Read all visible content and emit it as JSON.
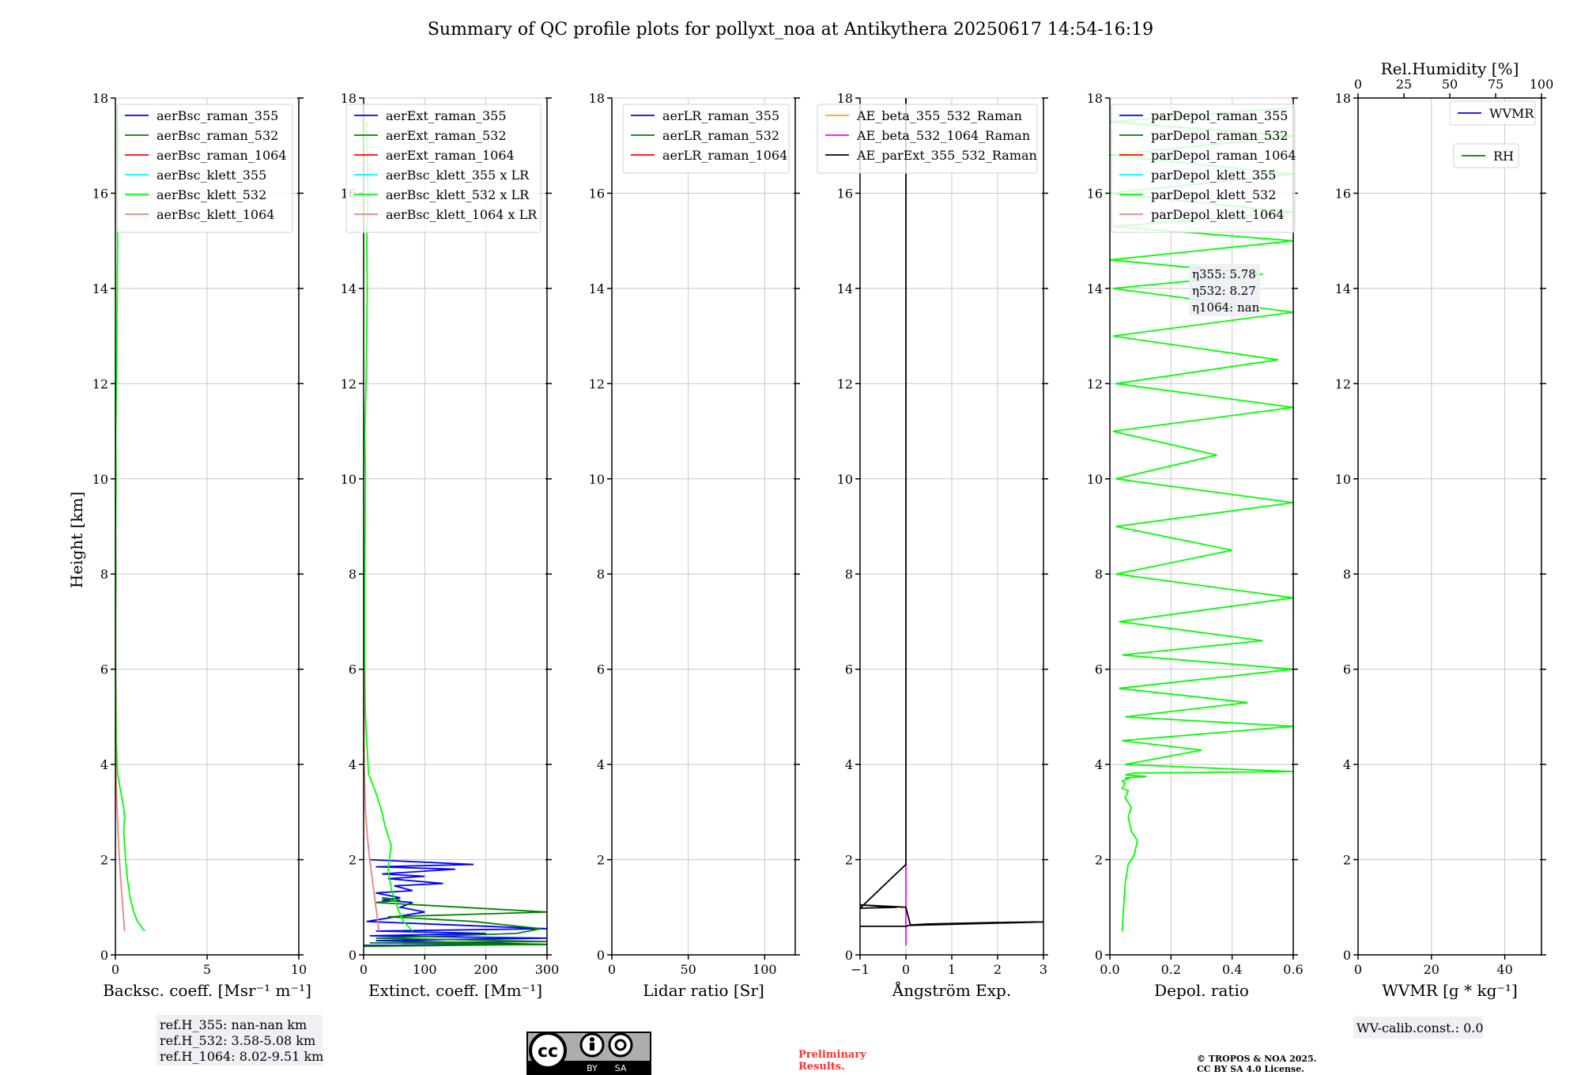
{
  "figure": {
    "title": "Summary of QC profile plots for pollyxt_noa at Antikythera 20250617 14:54-16:19",
    "ylabel": "Height [km]",
    "ref_heights": [
      "ref.H_355: nan-nan km",
      "ref.H_532: 3.58-5.08 km",
      "ref.H_1064: 8.02-9.51 km"
    ],
    "wv_calib": "WV-calib.const.: 0.0",
    "preliminary": [
      "Preliminary",
      "Results."
    ],
    "copyright": [
      "© TROPOS & NOA 2025.",
      "CC BY SA 4.0 License."
    ],
    "license_badge": {
      "by": "BY",
      "sa": "SA"
    }
  },
  "chart_data": [
    {
      "type": "line",
      "xlabel": "Backsc. coeff. [Msr⁻¹ m⁻¹]",
      "xlim": [
        0,
        10
      ],
      "xticks": [
        0,
        5,
        10
      ],
      "ylim": [
        0,
        18
      ],
      "yticks": [
        0,
        2,
        4,
        6,
        8,
        10,
        12,
        14,
        16,
        18
      ],
      "grid": true,
      "legend": "top-right",
      "series": [
        {
          "name": "aerBsc_raman_355",
          "color": "#0000ff",
          "x": [],
          "y": []
        },
        {
          "name": "aerBsc_raman_532",
          "color": "#008000",
          "x": [],
          "y": []
        },
        {
          "name": "aerBsc_raman_1064",
          "color": "#ff0000",
          "x": [],
          "y": []
        },
        {
          "name": "aerBsc_klett_355",
          "color": "#00ffff",
          "x": [],
          "y": []
        },
        {
          "name": "aerBsc_klett_532",
          "color": "#00ff00",
          "x": [
            1.6,
            1.2,
            1.0,
            0.8,
            0.65,
            0.55,
            0.5,
            0.45,
            0.5,
            0.45,
            0.3,
            0.12,
            0.05,
            0.02,
            0.02,
            0.03,
            0.02,
            0.03,
            0.02,
            0.05,
            0.08,
            0.1,
            0.12,
            0.1,
            0.15,
            0.12
          ],
          "y": [
            0.5,
            0.7,
            0.9,
            1.2,
            1.6,
            2.0,
            2.3,
            2.6,
            2.9,
            3.1,
            3.4,
            3.8,
            4.5,
            6.0,
            7.0,
            8.0,
            9.0,
            10.0,
            11.0,
            12.0,
            13.0,
            14.0,
            15.0,
            16.0,
            17.0,
            17.8
          ]
        },
        {
          "name": "aerBsc_klett_1064",
          "color": "#f08080",
          "x": [
            0.5,
            0.4,
            0.3,
            0.22,
            0.15,
            0.1,
            0.05,
            0.02,
            0.01,
            0.01
          ],
          "y": [
            0.5,
            1.0,
            1.5,
            2.0,
            2.5,
            3.0,
            3.5,
            4.0,
            6.0,
            9.0
          ]
        }
      ]
    },
    {
      "type": "line",
      "xlabel": "Extinct. coeff. [Mm⁻¹]",
      "xlim": [
        0,
        300
      ],
      "xticks": [
        0,
        100,
        200,
        300
      ],
      "ylim": [
        0,
        18
      ],
      "yticks": [
        0,
        2,
        4,
        6,
        8,
        10,
        12,
        14,
        16,
        18
      ],
      "grid": true,
      "legend": "top-right",
      "series": [
        {
          "name": "aerExt_raman_355",
          "color": "#0000ff",
          "x": [
            0,
            300,
            20,
            300,
            10,
            200,
            20,
            300,
            5,
            100,
            60,
            80,
            30,
            60,
            20,
            80,
            50,
            130,
            40,
            100,
            30,
            150,
            20,
            180,
            10
          ],
          "y": [
            0.2,
            0.22,
            0.3,
            0.35,
            0.4,
            0.45,
            0.5,
            0.55,
            0.7,
            0.9,
            1.0,
            1.1,
            1.15,
            1.2,
            1.3,
            1.35,
            1.45,
            1.5,
            1.6,
            1.65,
            1.7,
            1.8,
            1.85,
            1.9,
            2.0
          ]
        },
        {
          "name": "aerExt_raman_532",
          "color": "#008000",
          "x": [
            0,
            300,
            10,
            300,
            20,
            250,
            290,
            180,
            40,
            300,
            20,
            60,
            30
          ],
          "y": [
            0.18,
            0.22,
            0.25,
            0.28,
            0.35,
            0.45,
            0.55,
            0.7,
            0.8,
            0.9,
            1.1,
            1.15,
            1.2
          ]
        },
        {
          "name": "aerExt_raman_1064",
          "color": "#ff0000",
          "x": [],
          "y": []
        },
        {
          "name": "aerBsc_klett_355 x LR",
          "color": "#00ffff",
          "x": [],
          "y": []
        },
        {
          "name": "aerBsc_klett_532 x LR",
          "color": "#00ff00",
          "x": [
            80,
            65,
            55,
            45,
            40,
            45,
            35,
            30,
            20,
            8,
            3,
            2,
            2,
            3,
            2,
            4,
            6,
            5,
            7,
            5
          ],
          "y": [
            0.5,
            0.7,
            1.0,
            1.4,
            1.8,
            2.3,
            2.7,
            3.0,
            3.4,
            3.8,
            5.0,
            6.0,
            8.0,
            10.0,
            11.0,
            12.0,
            14.0,
            15.0,
            16.0,
            17.5
          ]
        },
        {
          "name": "aerBsc_klett_1064 x LR",
          "color": "#f08080",
          "x": [
            25,
            20,
            15,
            10,
            6,
            3,
            1,
            0.5
          ],
          "y": [
            0.5,
            1.0,
            1.5,
            2.0,
            2.5,
            3.0,
            4.0,
            6.0
          ]
        }
      ]
    },
    {
      "type": "line",
      "xlabel": "Lidar ratio [Sr]",
      "xlim": [
        0,
        120
      ],
      "xticks": [
        0,
        50,
        100
      ],
      "ylim": [
        0,
        18
      ],
      "yticks": [
        0,
        2,
        4,
        6,
        8,
        10,
        12,
        14,
        16,
        18
      ],
      "grid": true,
      "legend": "top-right",
      "series": [
        {
          "name": "aerLR_raman_355",
          "color": "#0000ff",
          "x": [],
          "y": []
        },
        {
          "name": "aerLR_raman_532",
          "color": "#008000",
          "x": [],
          "y": []
        },
        {
          "name": "aerLR_raman_1064",
          "color": "#ff0000",
          "x": [],
          "y": []
        }
      ]
    },
    {
      "type": "line",
      "xlabel": "Ångström Exp.",
      "xlim": [
        -1,
        3
      ],
      "xticks": [
        -1,
        0,
        1,
        2,
        3
      ],
      "ylim": [
        0,
        18
      ],
      "yticks": [
        0,
        2,
        4,
        6,
        8,
        10,
        12,
        14,
        16,
        18
      ],
      "grid": true,
      "legend": "top-right",
      "series": [
        {
          "name": "AE_beta_355_532_Raman",
          "color": "#ffa500",
          "x": [],
          "y": []
        },
        {
          "name": "AE_beta_532_1064_Raman",
          "color": "#ff00ff",
          "x": [
            0,
            0
          ],
          "y": [
            0.2,
            2.0
          ]
        },
        {
          "name": "AE_parExt_355_532_Raman",
          "color": "#000000",
          "x": [
            -1,
            0,
            0.1,
            0.5,
            1.0,
            2.0,
            3.0,
            0.1,
            0,
            -1,
            -0.2,
            -1,
            0,
            0,
            0,
            0
          ],
          "y": [
            0.6,
            0.6,
            0.63,
            0.65,
            0.66,
            0.68,
            0.69,
            0.62,
            1.0,
            1.05,
            1.0,
            0.98,
            1.9,
            2.0,
            1.95,
            18.0
          ]
        }
      ]
    },
    {
      "type": "line",
      "xlabel": "Depol. ratio",
      "xlim": [
        0.0,
        0.6
      ],
      "xticks": [
        0.0,
        0.2,
        0.4,
        0.6
      ],
      "ylim": [
        0,
        18
      ],
      "yticks": [
        0,
        2,
        4,
        6,
        8,
        10,
        12,
        14,
        16,
        18
      ],
      "grid": true,
      "legend": "top-left",
      "annotations": [
        "η355: 5.78",
        "η532: 8.27",
        "η1064: nan"
      ],
      "series": [
        {
          "name": "parDepol_raman_355",
          "color": "#0000ff",
          "x": [],
          "y": []
        },
        {
          "name": "parDepol_raman_532",
          "color": "#008000",
          "x": [],
          "y": []
        },
        {
          "name": "parDepol_raman_1064",
          "color": "#ff0000",
          "x": [],
          "y": []
        },
        {
          "name": "parDepol_klett_355",
          "color": "#00ffff",
          "x": [],
          "y": []
        },
        {
          "name": "parDepol_klett_532",
          "color": "#00ff00",
          "x": [
            0.04,
            0.045,
            0.05,
            0.06,
            0.08,
            0.09,
            0.07,
            0.06,
            0.07,
            0.05,
            0.06,
            0.04,
            0.05,
            0.04,
            0.06,
            0.05,
            0.12,
            0.05,
            0.08,
            0.6,
            0.05,
            0.3,
            0.04,
            0.6,
            0.05,
            0.45,
            0.03,
            0.6,
            0.04,
            0.5,
            0.03,
            0.6,
            0.02,
            0.4,
            0.02,
            0.6,
            0.02,
            0.35,
            0.01,
            0.6,
            0.02,
            0.55,
            0.01,
            0.6,
            0.01,
            0.5,
            0.0,
            0.6,
            0.01,
            0.6,
            0.0,
            0.6,
            0.0,
            0.6,
            0.0,
            0.6
          ],
          "y": [
            0.5,
            1.0,
            1.5,
            1.9,
            2.1,
            2.4,
            2.6,
            2.9,
            3.1,
            3.3,
            3.45,
            3.5,
            3.6,
            3.65,
            3.7,
            3.72,
            3.75,
            3.78,
            3.82,
            3.85,
            4.0,
            4.3,
            4.5,
            4.8,
            5.0,
            5.3,
            5.6,
            6.0,
            6.3,
            6.6,
            7.0,
            7.5,
            8.0,
            8.5,
            9.0,
            9.5,
            10.0,
            10.5,
            11.0,
            11.5,
            12.0,
            12.5,
            13.0,
            13.5,
            14.0,
            14.3,
            14.6,
            15.0,
            15.3,
            15.6,
            16.0,
            16.4,
            16.8,
            17.2,
            17.5,
            17.8
          ]
        },
        {
          "name": "parDepol_klett_1064",
          "color": "#f08080",
          "x": [],
          "y": []
        }
      ]
    },
    {
      "type": "line",
      "xlabel": "WVMR [g * kg⁻¹]",
      "x2label": "Rel.Humidity [%]",
      "xlim": [
        0,
        50
      ],
      "xticks": [
        0,
        20,
        40
      ],
      "x2lim": [
        0,
        100
      ],
      "x2ticks": [
        0,
        25,
        50,
        75,
        100
      ],
      "ylim": [
        0,
        18
      ],
      "yticks": [
        0,
        2,
        4,
        6,
        8,
        10,
        12,
        14,
        16,
        18
      ],
      "grid": true,
      "legend": "top-right",
      "series": [
        {
          "name": "WVMR",
          "color": "#0000ff",
          "x": [],
          "y": []
        },
        {
          "name": "RH",
          "color": "#008000",
          "x": [],
          "y": []
        }
      ]
    }
  ]
}
